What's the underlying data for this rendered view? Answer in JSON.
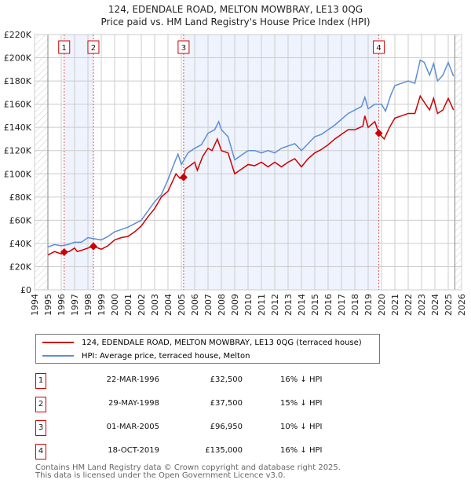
{
  "chart_data": {
    "type": "line",
    "title": "124, EDENDALE ROAD, MELTON MOWBRAY, LE13 0QG",
    "subtitle": "Price paid vs. HM Land Registry's House Price Index (HPI)",
    "xlim": [
      1994,
      2026
    ],
    "ylim": [
      0,
      220000
    ],
    "x_ticks": [
      "1994",
      "1995",
      "1996",
      "1997",
      "1998",
      "1999",
      "2000",
      "2001",
      "2002",
      "2003",
      "2004",
      "2005",
      "2006",
      "2007",
      "2008",
      "2009",
      "2010",
      "2011",
      "2012",
      "2013",
      "2014",
      "2015",
      "2016",
      "2017",
      "2018",
      "2019",
      "2020",
      "2021",
      "2022",
      "2023",
      "2024",
      "2025",
      "2026"
    ],
    "y_ticks": [
      {
        "v": 0,
        "l": "£0"
      },
      {
        "v": 20000,
        "l": "£20K"
      },
      {
        "v": 40000,
        "l": "£40K"
      },
      {
        "v": 60000,
        "l": "£60K"
      },
      {
        "v": 80000,
        "l": "£80K"
      },
      {
        "v": 100000,
        "l": "£100K"
      },
      {
        "v": 120000,
        "l": "£120K"
      },
      {
        "v": 140000,
        "l": "£140K"
      },
      {
        "v": 160000,
        "l": "£160K"
      },
      {
        "v": 180000,
        "l": "£180K"
      },
      {
        "v": 200000,
        "l": "£200K"
      },
      {
        "v": 220000,
        "l": "£220K"
      }
    ],
    "series": [
      {
        "name": "124, EDENDALE ROAD, MELTON MOWBRAY, LE13 0QG (terraced house)",
        "color": "#cc0000",
        "x": [
          1995,
          1995.5,
          1996,
          1996.22,
          1996.6,
          1997,
          1997.2,
          1997.5,
          1998,
          1998.41,
          1999,
          1999.5,
          2000,
          2000.5,
          2001,
          2001.5,
          2002,
          2002.5,
          2003,
          2003.5,
          2004,
          2004.6,
          2004.9,
          2005.17,
          2005.3,
          2006,
          2006.2,
          2006.6,
          2007,
          2007.3,
          2007.7,
          2008,
          2008.5,
          2009,
          2009.5,
          2010,
          2010.5,
          2011,
          2011.5,
          2012,
          2012.5,
          2013,
          2013.5,
          2014,
          2014.5,
          2015,
          2015.5,
          2016,
          2016.5,
          2017,
          2017.5,
          2018,
          2018.6,
          2018.75,
          2019,
          2019.5,
          2019.8,
          2020.2,
          2020.6,
          2021,
          2021.5,
          2022,
          2022.5,
          2022.9,
          2023.3,
          2023.6,
          2023.9,
          2024.2,
          2024.6,
          2025,
          2025.4
        ],
        "y": [
          30,
          33,
          31,
          32.5,
          33,
          36,
          33,
          34,
          36,
          37.5,
          35,
          38,
          43,
          45,
          46,
          50,
          55,
          63,
          70,
          80,
          85,
          100,
          96,
          97,
          104,
          110,
          103,
          115,
          122,
          120,
          130,
          120,
          118,
          100,
          104,
          108,
          107,
          110,
          106,
          110,
          106,
          110,
          113,
          106,
          113,
          118,
          121,
          125,
          130,
          134,
          138,
          138,
          141,
          150,
          140,
          145,
          135,
          130,
          140,
          148,
          150,
          152,
          152,
          167,
          160,
          155,
          165,
          152,
          155,
          165,
          155
        ]
      },
      {
        "name": "HPI: Average price, terraced house, Melton",
        "color": "#5b8fd4",
        "x": [
          1995,
          1995.5,
          1996,
          1996.5,
          1997,
          1997.5,
          1998,
          1998.5,
          1999,
          1999.5,
          2000,
          2000.5,
          2001,
          2001.5,
          2002,
          2002.5,
          2003,
          2003.5,
          2004,
          2004.5,
          2004.75,
          2005,
          2005.5,
          2006,
          2006.5,
          2007,
          2007.5,
          2007.8,
          2008,
          2008.5,
          2009,
          2009.5,
          2010,
          2010.5,
          2011,
          2011.5,
          2012,
          2012.5,
          2013,
          2013.5,
          2014,
          2014.5,
          2015,
          2015.5,
          2016,
          2016.5,
          2017,
          2017.5,
          2018,
          2018.5,
          2018.75,
          2019,
          2019.5,
          2020,
          2020.3,
          2020.7,
          2021,
          2021.5,
          2022,
          2022.5,
          2022.9,
          2023.2,
          2023.6,
          2023.9,
          2024.2,
          2024.6,
          2025,
          2025.4
        ],
        "y": [
          37,
          39,
          38,
          39,
          41,
          41,
          45,
          44,
          43,
          46,
          50,
          52,
          54,
          57,
          60,
          68,
          76,
          82,
          95,
          110,
          117,
          108,
          118,
          122,
          125,
          135,
          138,
          145,
          138,
          132,
          112,
          116,
          120,
          120,
          118,
          120,
          118,
          122,
          124,
          126,
          120,
          126,
          132,
          134,
          138,
          142,
          147,
          152,
          155,
          158,
          166,
          156,
          160,
          160,
          154,
          168,
          176,
          178,
          180,
          178,
          198,
          196,
          185,
          195,
          180,
          185,
          196,
          184
        ]
      }
    ],
    "sales": [
      {
        "id": "1",
        "date": "22-MAR-1996",
        "x": 1996.22,
        "price": "£32,500",
        "value": 32500,
        "delta": "16% ↓ HPI"
      },
      {
        "id": "2",
        "date": "29-MAY-1998",
        "x": 1998.41,
        "price": "£37,500",
        "value": 37500,
        "delta": "15% ↓ HPI"
      },
      {
        "id": "3",
        "date": "01-MAR-2005",
        "x": 2005.17,
        "price": "£96,950",
        "value": 96950,
        "delta": "10% ↓ HPI"
      },
      {
        "id": "4",
        "date": "18-OCT-2019",
        "x": 2019.8,
        "price": "£135,000",
        "value": 135000,
        "delta": "16% ↓ HPI"
      }
    ],
    "shaded_ranges": [
      [
        1996.22,
        1998.41
      ],
      [
        2005.17,
        2019.8
      ]
    ],
    "data_range": [
      1995,
      2025.5
    ],
    "legend_position": "bottom"
  },
  "title": {
    "line1": "124, EDENDALE ROAD, MELTON MOWBRAY, LE13 0QG",
    "line2": "Price paid vs. HM Land Registry's House Price Index (HPI)"
  },
  "legend": {
    "red": "124, EDENDALE ROAD, MELTON MOWBRAY, LE13 0QG (terraced house)",
    "blue": "HPI: Average price, terraced house, Melton"
  },
  "footer": {
    "line1": "Contains HM Land Registry data © Crown copyright and database right 2025.",
    "line2": "This data is licensed under the Open Government Licence v3.0."
  }
}
